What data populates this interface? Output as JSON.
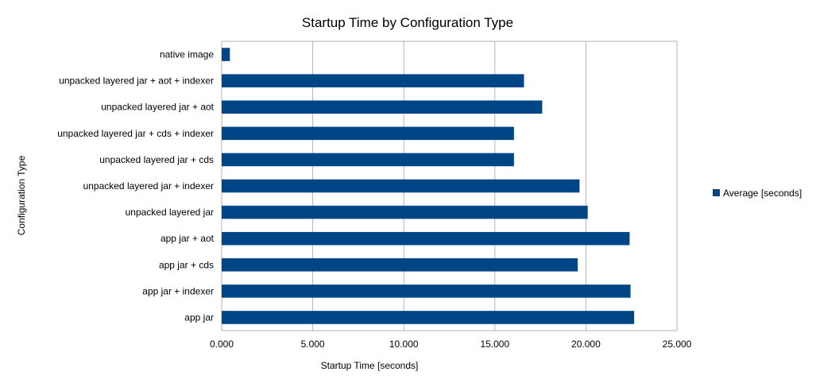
{
  "chart_data": {
    "type": "bar",
    "orientation": "horizontal",
    "title": "Startup Time by Configuration Type",
    "xlabel": "Startup Time [seconds]",
    "ylabel": "Configuration Type",
    "categories": [
      "native image",
      "unpacked layered jar + aot + indexer",
      "unpacked layered jar + aot",
      "unpacked layered jar + cds + indexer",
      "unpacked layered jar + cds",
      "unpacked layered jar + indexer",
      "unpacked layered jar",
      "app jar + aot",
      "app jar + cds",
      "app jar + indexer",
      "app jar"
    ],
    "series": [
      {
        "name": "Average [seconds]",
        "color": "#004586",
        "values": [
          0.45,
          16.6,
          17.6,
          16.05,
          16.05,
          19.65,
          20.1,
          22.4,
          19.55,
          22.45,
          22.65
        ]
      }
    ],
    "xlim": [
      0,
      25
    ],
    "xticks": [
      0,
      5,
      10,
      15,
      20,
      25
    ],
    "xtick_labels": [
      "0.000",
      "5.000",
      "10.000",
      "15.000",
      "20.000",
      "25.000"
    ],
    "grid": true,
    "legend": "right"
  }
}
